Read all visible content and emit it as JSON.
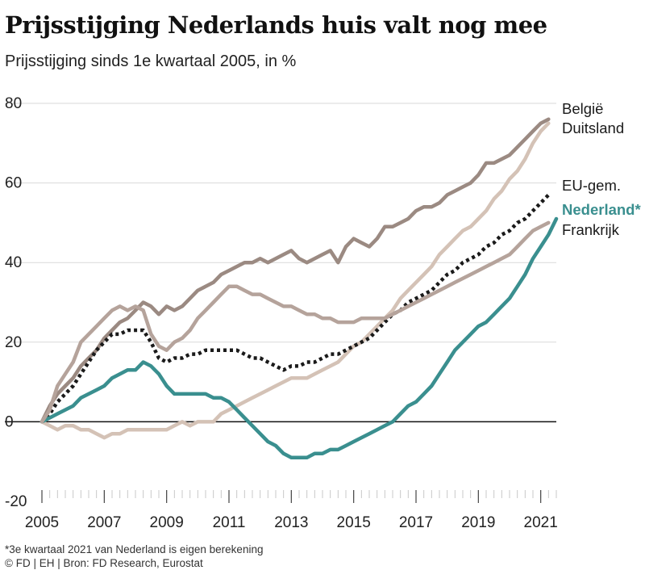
{
  "title": "Prijsstijging Nederlands huis valt nog mee",
  "subtitle": "Prijsstijging sinds 1e kwartaal 2005, in %",
  "footnote": "*3e kwartaal 2021 van Nederland is eigen berekening",
  "credit": "© FD | EH | Bron: FD Research, Eurostat",
  "chart_data": {
    "type": "line",
    "title": "Prijsstijging Nederlands huis valt nog mee",
    "subtitle": "Prijsstijging sinds 1e kwartaal 2005, in %",
    "xlabel": "",
    "ylabel": "",
    "x_ticks": [
      "2005",
      "2007",
      "2009",
      "2011",
      "2013",
      "2015",
      "2017",
      "2019",
      "2021"
    ],
    "x_range": [
      2005.0,
      2021.5
    ],
    "ylim": [
      -20,
      80
    ],
    "y_ticks": [
      "-20",
      "0",
      "20",
      "40",
      "60",
      "80"
    ],
    "grid": true,
    "quarters_start": 2005.0,
    "x": [
      2005.0,
      2005.25,
      2005.5,
      2005.75,
      2006.0,
      2006.25,
      2006.5,
      2006.75,
      2007.0,
      2007.25,
      2007.5,
      2007.75,
      2008.0,
      2008.25,
      2008.5,
      2008.75,
      2009.0,
      2009.25,
      2009.5,
      2009.75,
      2010.0,
      2010.25,
      2010.5,
      2010.75,
      2011.0,
      2011.25,
      2011.5,
      2011.75,
      2012.0,
      2012.25,
      2012.5,
      2012.75,
      2013.0,
      2013.25,
      2013.5,
      2013.75,
      2014.0,
      2014.25,
      2014.5,
      2014.75,
      2015.0,
      2015.25,
      2015.5,
      2015.75,
      2016.0,
      2016.25,
      2016.5,
      2016.75,
      2017.0,
      2017.25,
      2017.5,
      2017.75,
      2018.0,
      2018.25,
      2018.5,
      2018.75,
      2019.0,
      2019.25,
      2019.5,
      2019.75,
      2020.0,
      2020.25,
      2020.5,
      2020.75,
      2021.0,
      2021.25,
      2021.5
    ],
    "series": [
      {
        "name": "België",
        "color": "#9b8a82",
        "width": 4.5,
        "dash": "",
        "values": [
          0,
          4,
          7,
          9,
          11,
          14,
          16,
          18,
          21,
          23,
          25,
          26,
          28,
          30,
          29,
          27,
          29,
          28,
          29,
          31,
          33,
          34,
          35,
          37,
          38,
          39,
          40,
          40,
          41,
          40,
          41,
          42,
          43,
          41,
          40,
          41,
          42,
          43,
          40,
          44,
          46,
          45,
          44,
          46,
          49,
          49,
          50,
          51,
          53,
          54,
          54,
          55,
          57,
          58,
          59,
          60,
          62,
          65,
          65,
          66,
          67,
          69,
          71,
          73,
          75,
          76,
          null
        ]
      },
      {
        "name": "Duitsland",
        "color": "#d4c2b6",
        "width": 4.5,
        "dash": "",
        "values": [
          0,
          -1,
          -2,
          -1,
          -1,
          -2,
          -2,
          -3,
          -4,
          -3,
          -3,
          -2,
          -2,
          -2,
          -2,
          -2,
          -2,
          -1,
          0,
          -1,
          0,
          0,
          0,
          2,
          3,
          4,
          5,
          6,
          7,
          8,
          9,
          10,
          11,
          11,
          11,
          12,
          13,
          14,
          15,
          17,
          19,
          20,
          22,
          24,
          26,
          28,
          31,
          33,
          35,
          37,
          39,
          42,
          44,
          46,
          48,
          49,
          51,
          53,
          56,
          58,
          61,
          63,
          66,
          70,
          73,
          75,
          null
        ]
      },
      {
        "name": "EU-gem.",
        "color": "#1a1a1a",
        "width": 4.5,
        "dash": "4 4",
        "values": [
          0,
          2,
          5,
          7,
          9,
          12,
          15,
          18,
          20,
          22,
          22,
          23,
          23,
          23,
          20,
          16,
          15,
          16,
          16,
          17,
          17,
          18,
          18,
          18,
          18,
          18,
          17,
          16,
          16,
          15,
          14,
          13,
          14,
          14,
          15,
          15,
          16,
          17,
          17,
          18,
          19,
          20,
          21,
          23,
          25,
          27,
          28,
          30,
          31,
          32,
          33,
          35,
          37,
          38,
          40,
          41,
          42,
          44,
          45,
          47,
          48,
          50,
          51,
          53,
          55,
          57,
          null
        ]
      },
      {
        "name": "Nederland*",
        "color": "#3a8f8f",
        "width": 4.5,
        "dash": "",
        "values": [
          0,
          1,
          2,
          3,
          4,
          6,
          7,
          8,
          9,
          11,
          12,
          13,
          13,
          15,
          14,
          12,
          9,
          7,
          7,
          7,
          7,
          7,
          6,
          6,
          5,
          3,
          1,
          -1,
          -3,
          -5,
          -6,
          -8,
          -9,
          -9,
          -9,
          -8,
          -8,
          -7,
          -7,
          -6,
          -5,
          -4,
          -3,
          -2,
          -1,
          0,
          2,
          4,
          5,
          7,
          9,
          12,
          15,
          18,
          20,
          22,
          24,
          25,
          27,
          29,
          31,
          34,
          37,
          41,
          44,
          47,
          51
        ]
      },
      {
        "name": "Frankrijk",
        "color": "#b5a39b",
        "width": 4.5,
        "dash": "",
        "values": [
          0,
          3,
          9,
          12,
          15,
          20,
          22,
          24,
          26,
          28,
          29,
          28,
          29,
          28,
          22,
          19,
          18,
          20,
          21,
          23,
          26,
          28,
          30,
          32,
          34,
          34,
          33,
          32,
          32,
          31,
          30,
          29,
          29,
          28,
          27,
          27,
          26,
          26,
          25,
          25,
          25,
          26,
          26,
          26,
          26,
          27,
          28,
          29,
          30,
          31,
          32,
          33,
          34,
          35,
          36,
          37,
          38,
          39,
          40,
          41,
          42,
          44,
          46,
          48,
          49,
          50,
          null
        ]
      }
    ],
    "legend": [
      {
        "label": "België",
        "color": "#1a1a1a",
        "bold": false
      },
      {
        "label": "Duitsland",
        "color": "#1a1a1a",
        "bold": false
      },
      {
        "label": "EU-gem.",
        "color": "#1a1a1a",
        "bold": false
      },
      {
        "label": "Nederland*",
        "color": "#3a8f8f",
        "bold": true
      },
      {
        "label": "Frankrijk",
        "color": "#1a1a1a",
        "bold": false
      }
    ],
    "legend_position": "right"
  }
}
